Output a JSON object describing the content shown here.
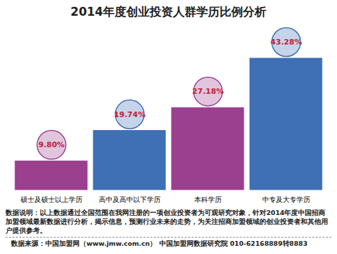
{
  "chart_data": {
    "type": "bar",
    "title": "2014年度创业投资人群学历比例分析",
    "categories": [
      "硕士及硕士以上学历",
      "高中及高中以下学历",
      "本科学历",
      "中专及大专学历"
    ],
    "values": [
      9.8,
      19.74,
      27.18,
      43.28
    ],
    "value_labels": [
      "9.80%",
      "19.74%",
      "27.18%",
      "43.28%"
    ],
    "colors": [
      "#9b3f8f",
      "#3f6fb5",
      "#9b3f8f",
      "#3f6fb5"
    ],
    "data_labels": true,
    "tick_labels": "x",
    "notes": "数据说明：以上数据通过全国范围在我网注册的一项创业投资者为可观研究对象，针对2014年度中国招商加盟领域最新数据进行分析，揭示信息，预测行业未来的走势，为关注招商加盟领域的创业投资者和其他用户提供参考。",
    "source": "数据来源：中国加盟网（www.jmw.com.cn）    中国加盟网数据研究院    010-62168889转8883"
  }
}
